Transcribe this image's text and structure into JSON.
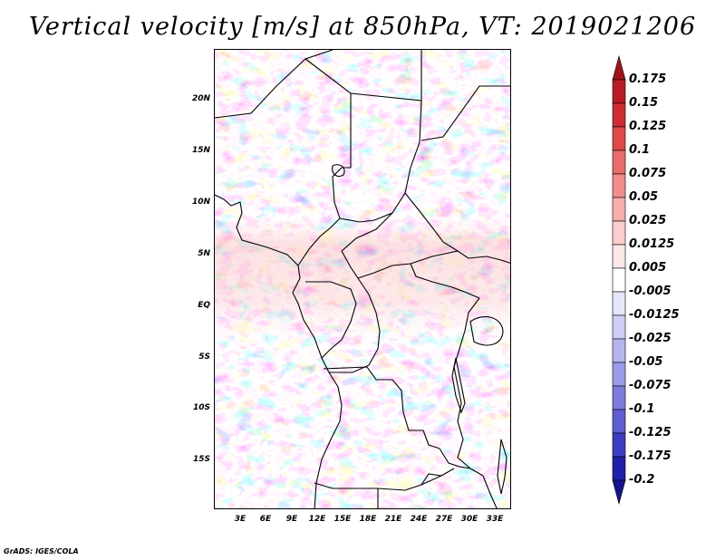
{
  "title": "Vertical velocity [m/s] at 850hPa, VT: 2019021206",
  "credit": "GrADS: IGES/COLA",
  "map": {
    "lat_ticks": [
      "20N",
      "15N",
      "10N",
      "5N",
      "EQ",
      "5S",
      "10S",
      "15S"
    ],
    "lon_ticks": [
      "3E",
      "6E",
      "9E",
      "12E",
      "15E",
      "18E",
      "21E",
      "24E",
      "27E",
      "30E",
      "33E"
    ],
    "lat_values": [
      20,
      15,
      10,
      5,
      0,
      -5,
      -10,
      -15
    ],
    "lon_values": [
      3,
      6,
      9,
      12,
      15,
      18,
      21,
      24,
      27,
      30,
      33
    ],
    "lon_range": [
      0.5,
      34
    ],
    "lat_range": [
      -19.5,
      25
    ]
  },
  "colorbar": {
    "levels": [
      "0.175",
      "0.15",
      "0.125",
      "0.1",
      "0.075",
      "0.05",
      "0.025",
      "0.0125",
      "0.005",
      "-0.005",
      "-0.0125",
      "-0.025",
      "-0.05",
      "-0.075",
      "-0.1",
      "-0.125",
      "-0.175",
      "-0.2"
    ],
    "colors": [
      "#a0141e",
      "#b71c25",
      "#cc2d33",
      "#de4a4a",
      "#e86c6a",
      "#f08d8b",
      "#f6aeac",
      "#fbcdcc",
      "#fde8e8",
      "#ffffff",
      "#e6e6fb",
      "#cfcff5",
      "#b5b5ee",
      "#9a9ae6",
      "#7c7cdc",
      "#5e5ed0",
      "#3d3dc0",
      "#2020a8",
      "#14148c"
    ]
  }
}
